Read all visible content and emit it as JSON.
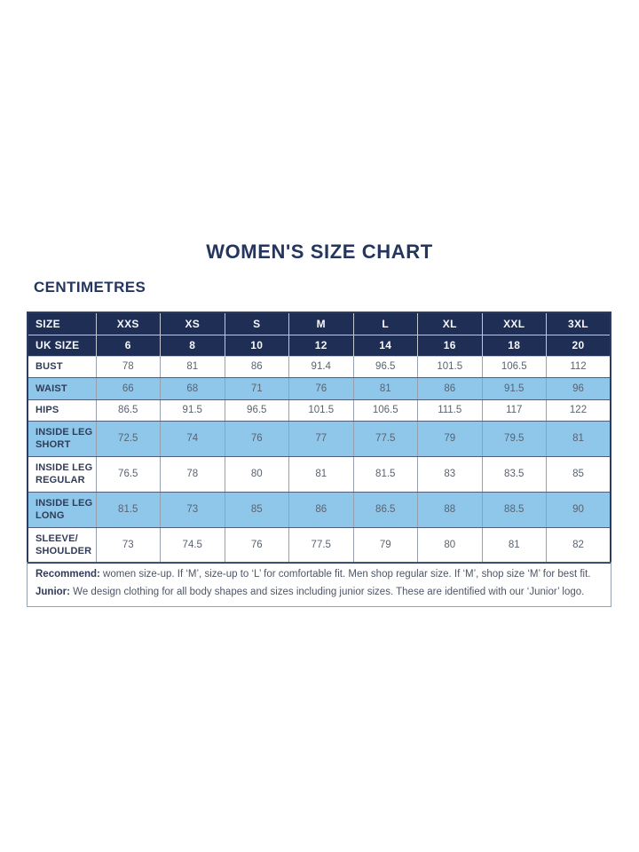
{
  "title": "WOMEN'S SIZE CHART",
  "unit_label": "CENTIMETRES",
  "colors": {
    "navy_bg": "#1f2e55",
    "navy_text": "#24355e",
    "row_blue": "#8ec7ea",
    "value_text": "#5a6370",
    "label_text": "#313c58",
    "foot_text": "#4d5666",
    "border_outer": "#2c3b60",
    "border_v": "#97a0ae",
    "border_h": "#4f5c7d",
    "header_divider": "#c2c7d2"
  },
  "chart_data": {
    "type": "table",
    "columns": [
      "SIZE",
      "XXS",
      "XS",
      "S",
      "M",
      "L",
      "XL",
      "XXL",
      "3XL"
    ],
    "uk_size_row": {
      "label": "UK SIZE",
      "values": [
        "6",
        "8",
        "10",
        "12",
        "14",
        "16",
        "18",
        "20"
      ]
    },
    "rows": [
      {
        "label": "BUST",
        "shaded": false,
        "values": [
          "78",
          "81",
          "86",
          "91.4",
          "96.5",
          "101.5",
          "106.5",
          "112"
        ]
      },
      {
        "label": "WAIST",
        "shaded": true,
        "values": [
          "66",
          "68",
          "71",
          "76",
          "81",
          "86",
          "91.5",
          "96"
        ]
      },
      {
        "label": "HIPS",
        "shaded": false,
        "values": [
          "86.5",
          "91.5",
          "96.5",
          "101.5",
          "106.5",
          "111.5",
          "117",
          "122"
        ]
      },
      {
        "label": "INSIDE LEG SHORT",
        "shaded": true,
        "values": [
          "72.5",
          "74",
          "76",
          "77",
          "77.5",
          "79",
          "79.5",
          "81"
        ]
      },
      {
        "label": "INSIDE LEG REGULAR",
        "shaded": false,
        "values": [
          "76.5",
          "78",
          "80",
          "81",
          "81.5",
          "83",
          "83.5",
          "85"
        ]
      },
      {
        "label": "INSIDE LEG LONG",
        "shaded": true,
        "values": [
          "81.5",
          "73",
          "85",
          "86",
          "86.5",
          "88",
          "88.5",
          "90"
        ]
      },
      {
        "label": "SLEEVE/ SHOULDER",
        "shaded": false,
        "values": [
          "73",
          "74.5",
          "76",
          "77.5",
          "79",
          "80",
          "81",
          "82"
        ]
      }
    ],
    "footnotes": [
      {
        "bold": "Recommend:",
        "text": " women size-up. If ‘M’, size-up to ‘L’ for comfortable fit. Men shop regular size. If ‘M’, shop size ‘M’ for best fit."
      },
      {
        "bold": "Junior:",
        "text": " We design clothing for all body shapes and sizes including junior sizes. These are identified with our ‘Junior’ logo."
      }
    ],
    "layout_hints": {
      "shaded_row_style": "alternating light blue starting at WAIST",
      "grid": true
    }
  }
}
